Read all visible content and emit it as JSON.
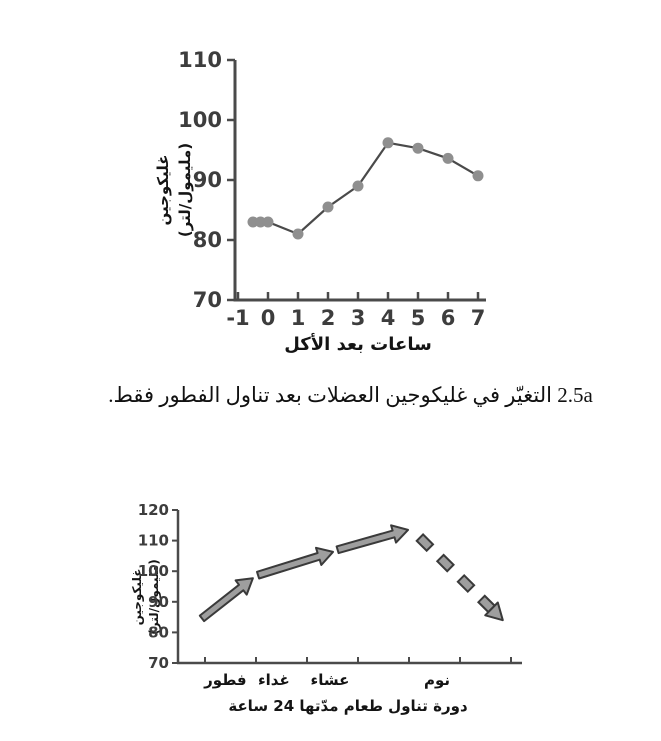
{
  "caption": {
    "text": "2.5a التغيّر في غليكوجين العضلات بعد تناول الفطور فقط."
  },
  "colors": {
    "axis": "#4a4a4a",
    "tick_label": "#3d3d3d",
    "text": "#141414",
    "marker": "#8f8f8f",
    "line": "#4a4a4a",
    "arrow_fill": "#9e9e9e",
    "arrow_stroke": "#3a3a3a",
    "background": "#ffffff"
  },
  "chart_data": [
    {
      "id": "glycogen-after-breakfast",
      "type": "line",
      "title": "",
      "xlabel": "ساعات بعد الأكل",
      "ylabel_line1": "غليكوجين",
      "ylabel_line2": "(مليمول/لتر)",
      "x": [
        -0.5,
        -0.25,
        0,
        1,
        2,
        3,
        4,
        5,
        6,
        7
      ],
      "y": [
        83,
        83,
        83,
        81,
        85.5,
        89,
        96.2,
        95.3,
        93.6,
        90.7
      ],
      "xlim": [
        -1,
        7
      ],
      "ylim": [
        70,
        110
      ],
      "xticks": [
        -1,
        0,
        1,
        2,
        3,
        4,
        5,
        6,
        7
      ],
      "yticks": [
        70,
        80,
        90,
        100,
        110
      ],
      "grid": false,
      "legend": "none",
      "marker_color": "#8f8f8f",
      "line_color": "#4a4a4a"
    },
    {
      "id": "glycogen-24h-meal-cycle",
      "type": "arrow-trend",
      "title": "",
      "xlabel": "دورة تناول طعام مدّتها 24 ساعة",
      "ylabel_line1": "غليكوجين",
      "ylabel_line2": "(مليمول/لتر)",
      "ylim": [
        70,
        120
      ],
      "yticks": [
        70,
        80,
        90,
        100,
        110,
        120
      ],
      "xtick_positions": [
        0,
        1,
        2,
        3,
        4,
        5,
        6
      ],
      "meal_labels": [
        {
          "label": "فطور",
          "x": 0.4
        },
        {
          "label": "غداء",
          "x": 1.35
        },
        {
          "label": "عشاء",
          "x": 2.45
        },
        {
          "label": "نوم",
          "x": 4.55
        }
      ],
      "solid_arrows": [
        {
          "x1": -0.06,
          "y1": 84.6,
          "x2": 0.94,
          "y2": 97.7
        },
        {
          "x1": 1.04,
          "y1": 98.7,
          "x2": 2.51,
          "y2": 106.3
        },
        {
          "x1": 2.6,
          "y1": 107.0,
          "x2": 3.98,
          "y2": 113.5
        }
      ],
      "dashed_arrow": {
        "x1": 4.2,
        "y1": 111.2,
        "x2": 5.84,
        "y2": 84.0
      },
      "grid": false,
      "legend": "none",
      "arrow_fill": "#9e9e9e",
      "arrow_stroke": "#3a3a3a"
    }
  ]
}
